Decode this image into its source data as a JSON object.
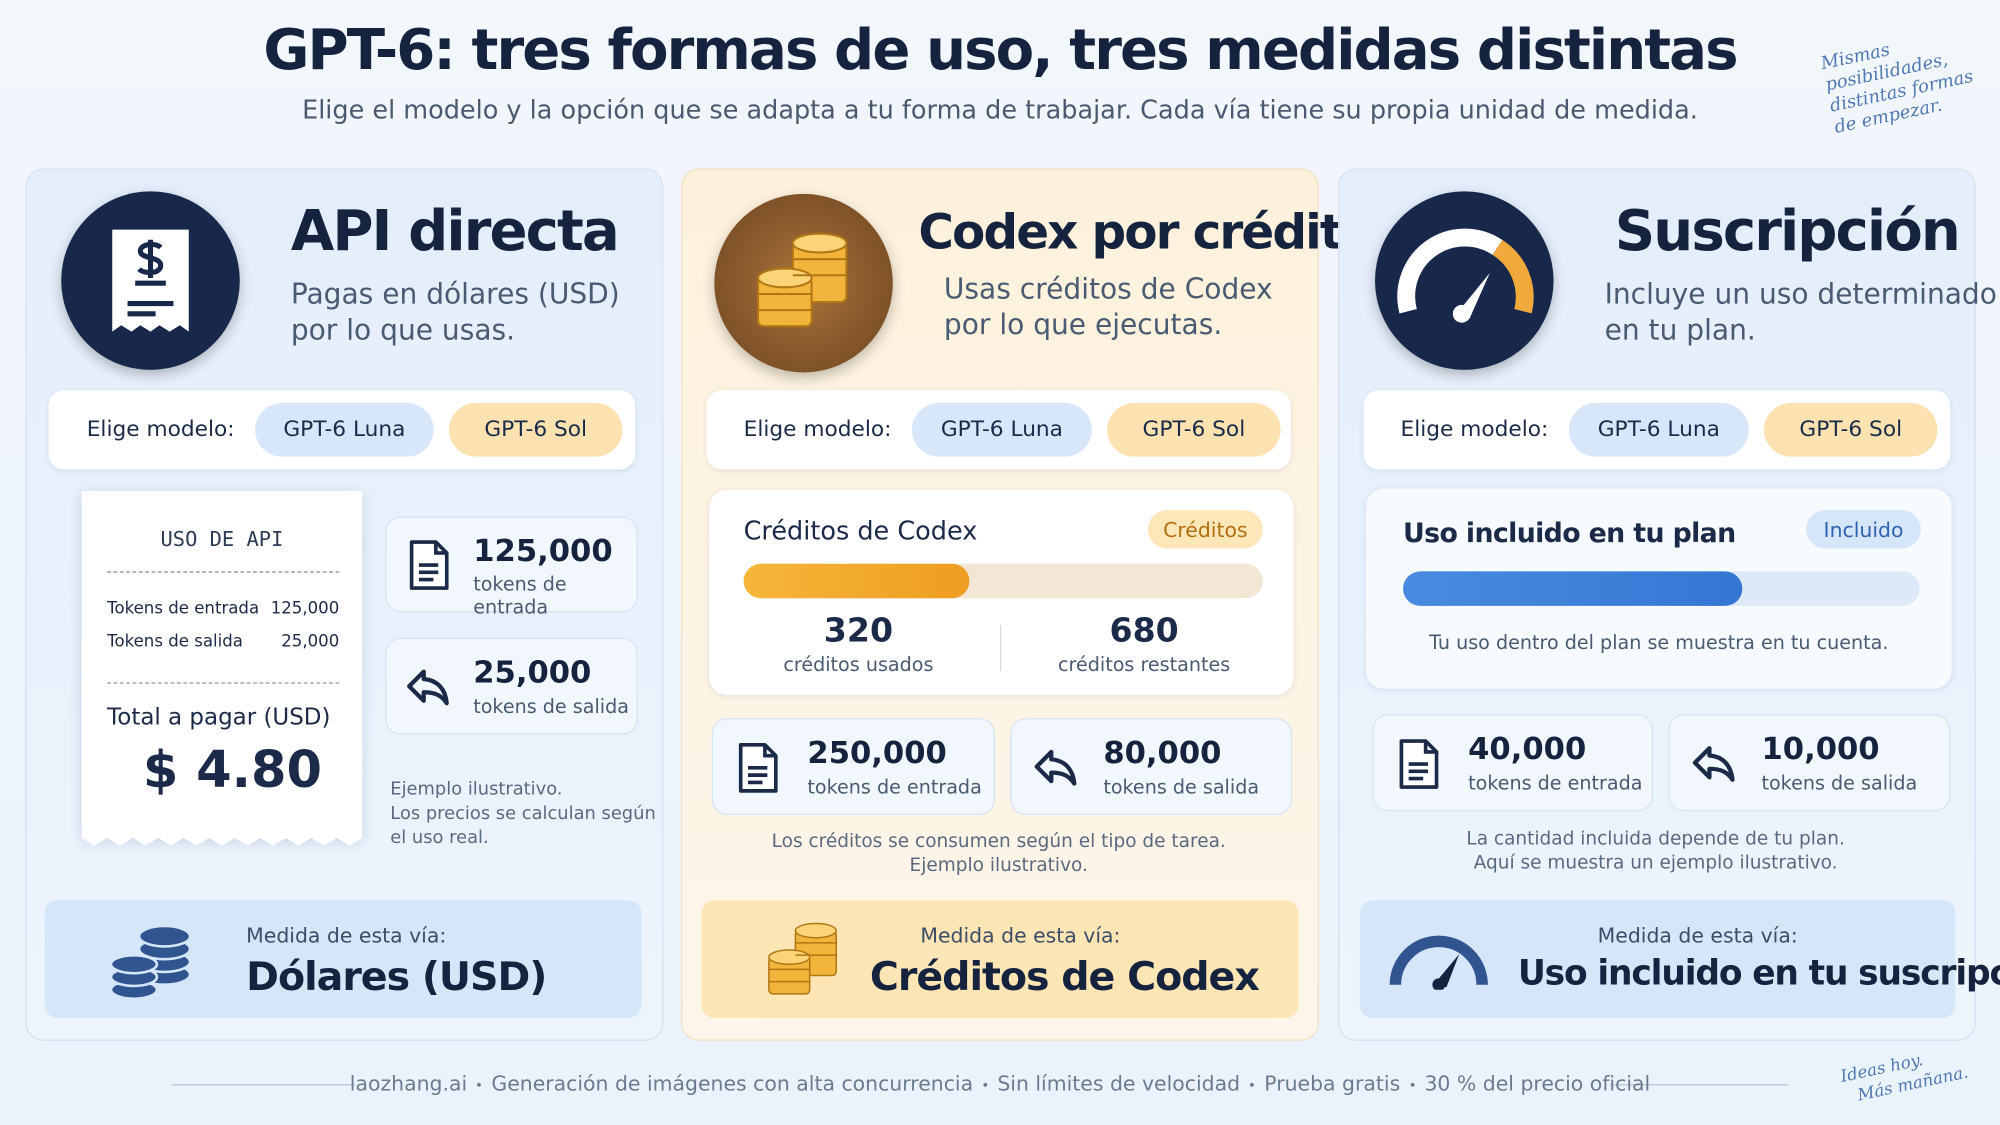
{
  "header": {
    "title": "GPT-6: tres formas de uso, tres medidas distintas",
    "subtitle": "Elige el modelo y la opción que se adapta a tu forma de trabajar. Cada vía tiene su propia unidad de medida.",
    "note": [
      "Mismas",
      "posibilidades,",
      "distintas formas",
      "de empezar."
    ]
  },
  "cards": [
    {
      "title": "API directa",
      "description": [
        "Pagas en dólares (USD)",
        "por lo que usas."
      ],
      "model_label": "Elige modelo:",
      "models": [
        "GPT-6 Luna",
        "GPT-6 Sol"
      ],
      "receipt": {
        "title": "USO DE API",
        "rows": [
          [
            "Tokens de entrada",
            "125,000"
          ],
          [
            "Tokens de salida",
            "25,000"
          ]
        ],
        "total_label": "Total a pagar (USD)",
        "total": "$ 4.80"
      },
      "stats": [
        {
          "value": "125,000",
          "label": "tokens de entrada"
        },
        {
          "value": "25,000",
          "label": "tokens de salida"
        }
      ],
      "footnote": [
        "Ejemplo ilustrativo.",
        "Los precios se calculan según",
        "el uso real."
      ],
      "measure_label": "Medida de esta vía:",
      "measure": "Dólares (USD)"
    },
    {
      "title": "Codex por créditos",
      "description": [
        "Usas créditos de Codex",
        "por lo que ejecutas."
      ],
      "model_label": "Elige modelo:",
      "models": [
        "GPT-6 Luna",
        "GPT-6 Sol"
      ],
      "panel": {
        "title": "Créditos de Codex",
        "badge": "Créditos",
        "used": "320",
        "used_label": "créditos usados",
        "remaining": "680",
        "remaining_label": "créditos restantes"
      },
      "stats": [
        {
          "value": "250,000",
          "label": "tokens de entrada"
        },
        {
          "value": "80,000",
          "label": "tokens de salida"
        }
      ],
      "footnote": [
        "Los créditos se consumen según el tipo de tarea.",
        "Ejemplo ilustrativo."
      ],
      "measure_label": "Medida de esta vía:",
      "measure": "Créditos de Codex"
    },
    {
      "title": "Suscripción",
      "description": [
        "Incluye un uso determinado",
        "en tu plan."
      ],
      "model_label": "Elige modelo:",
      "models": [
        "GPT-6 Luna",
        "GPT-6 Sol"
      ],
      "panel": {
        "title": "Uso incluido en tu plan",
        "badge": "Incluido",
        "text": "Tu uso dentro del plan se muestra en tu cuenta."
      },
      "stats": [
        {
          "value": "40,000",
          "label": "tokens de entrada"
        },
        {
          "value": "10,000",
          "label": "tokens de salida"
        }
      ],
      "footnote": [
        "La cantidad incluida depende de tu plan.",
        "Aquí se muestra un ejemplo ilustrativo."
      ],
      "measure_label": "Medida de esta vía:",
      "measure": "Uso incluido en tu suscripción"
    }
  ],
  "footer": {
    "items": [
      "laozhang.ai",
      "Generación de imágenes con alta concurrencia",
      "Sin límites de velocidad",
      "Prueba gratis",
      "30 % del precio oficial"
    ],
    "note": [
      "Ideas hoy.",
      "Más mañana."
    ]
  }
}
